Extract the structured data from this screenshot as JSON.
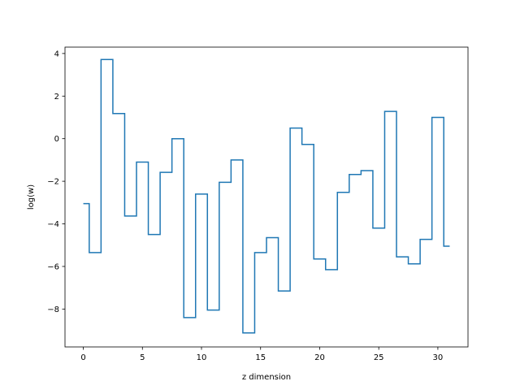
{
  "chart_data": {
    "type": "line",
    "step": "mid",
    "xlabel": "z dimension",
    "ylabel": "log(w)",
    "xlim": [
      -1.55,
      32.55
    ],
    "ylim": [
      -9.78,
      4.3
    ],
    "xticks": [
      0,
      5,
      10,
      15,
      20,
      25,
      30
    ],
    "yticks": [
      -8,
      -6,
      -4,
      -2,
      0,
      2,
      4
    ],
    "xtick_labels": [
      "0",
      "5",
      "10",
      "15",
      "20",
      "25",
      "30"
    ],
    "ytick_labels": [
      "−8",
      "−6",
      "−4",
      "−2",
      "0",
      "2",
      "4"
    ],
    "grid": false,
    "series": [
      {
        "color": "#1f77b4",
        "x": [
          0,
          1,
          2,
          3,
          4,
          5,
          6,
          7,
          8,
          9,
          10,
          11,
          12,
          13,
          14,
          15,
          16,
          17,
          18,
          19,
          20,
          21,
          22,
          23,
          24,
          25,
          26,
          27,
          28,
          29,
          30,
          31
        ],
        "values": [
          -3.05,
          -5.35,
          3.72,
          1.18,
          -3.63,
          -1.1,
          -4.5,
          -1.58,
          0.0,
          -8.4,
          -2.6,
          -8.05,
          -2.05,
          -1.0,
          -9.12,
          -5.35,
          -4.65,
          -7.15,
          0.5,
          -0.27,
          -5.65,
          -6.15,
          -2.52,
          -1.68,
          -1.5,
          -4.2,
          1.28,
          -5.55,
          -5.88,
          -4.73,
          1.0,
          -5.05
        ]
      }
    ]
  }
}
